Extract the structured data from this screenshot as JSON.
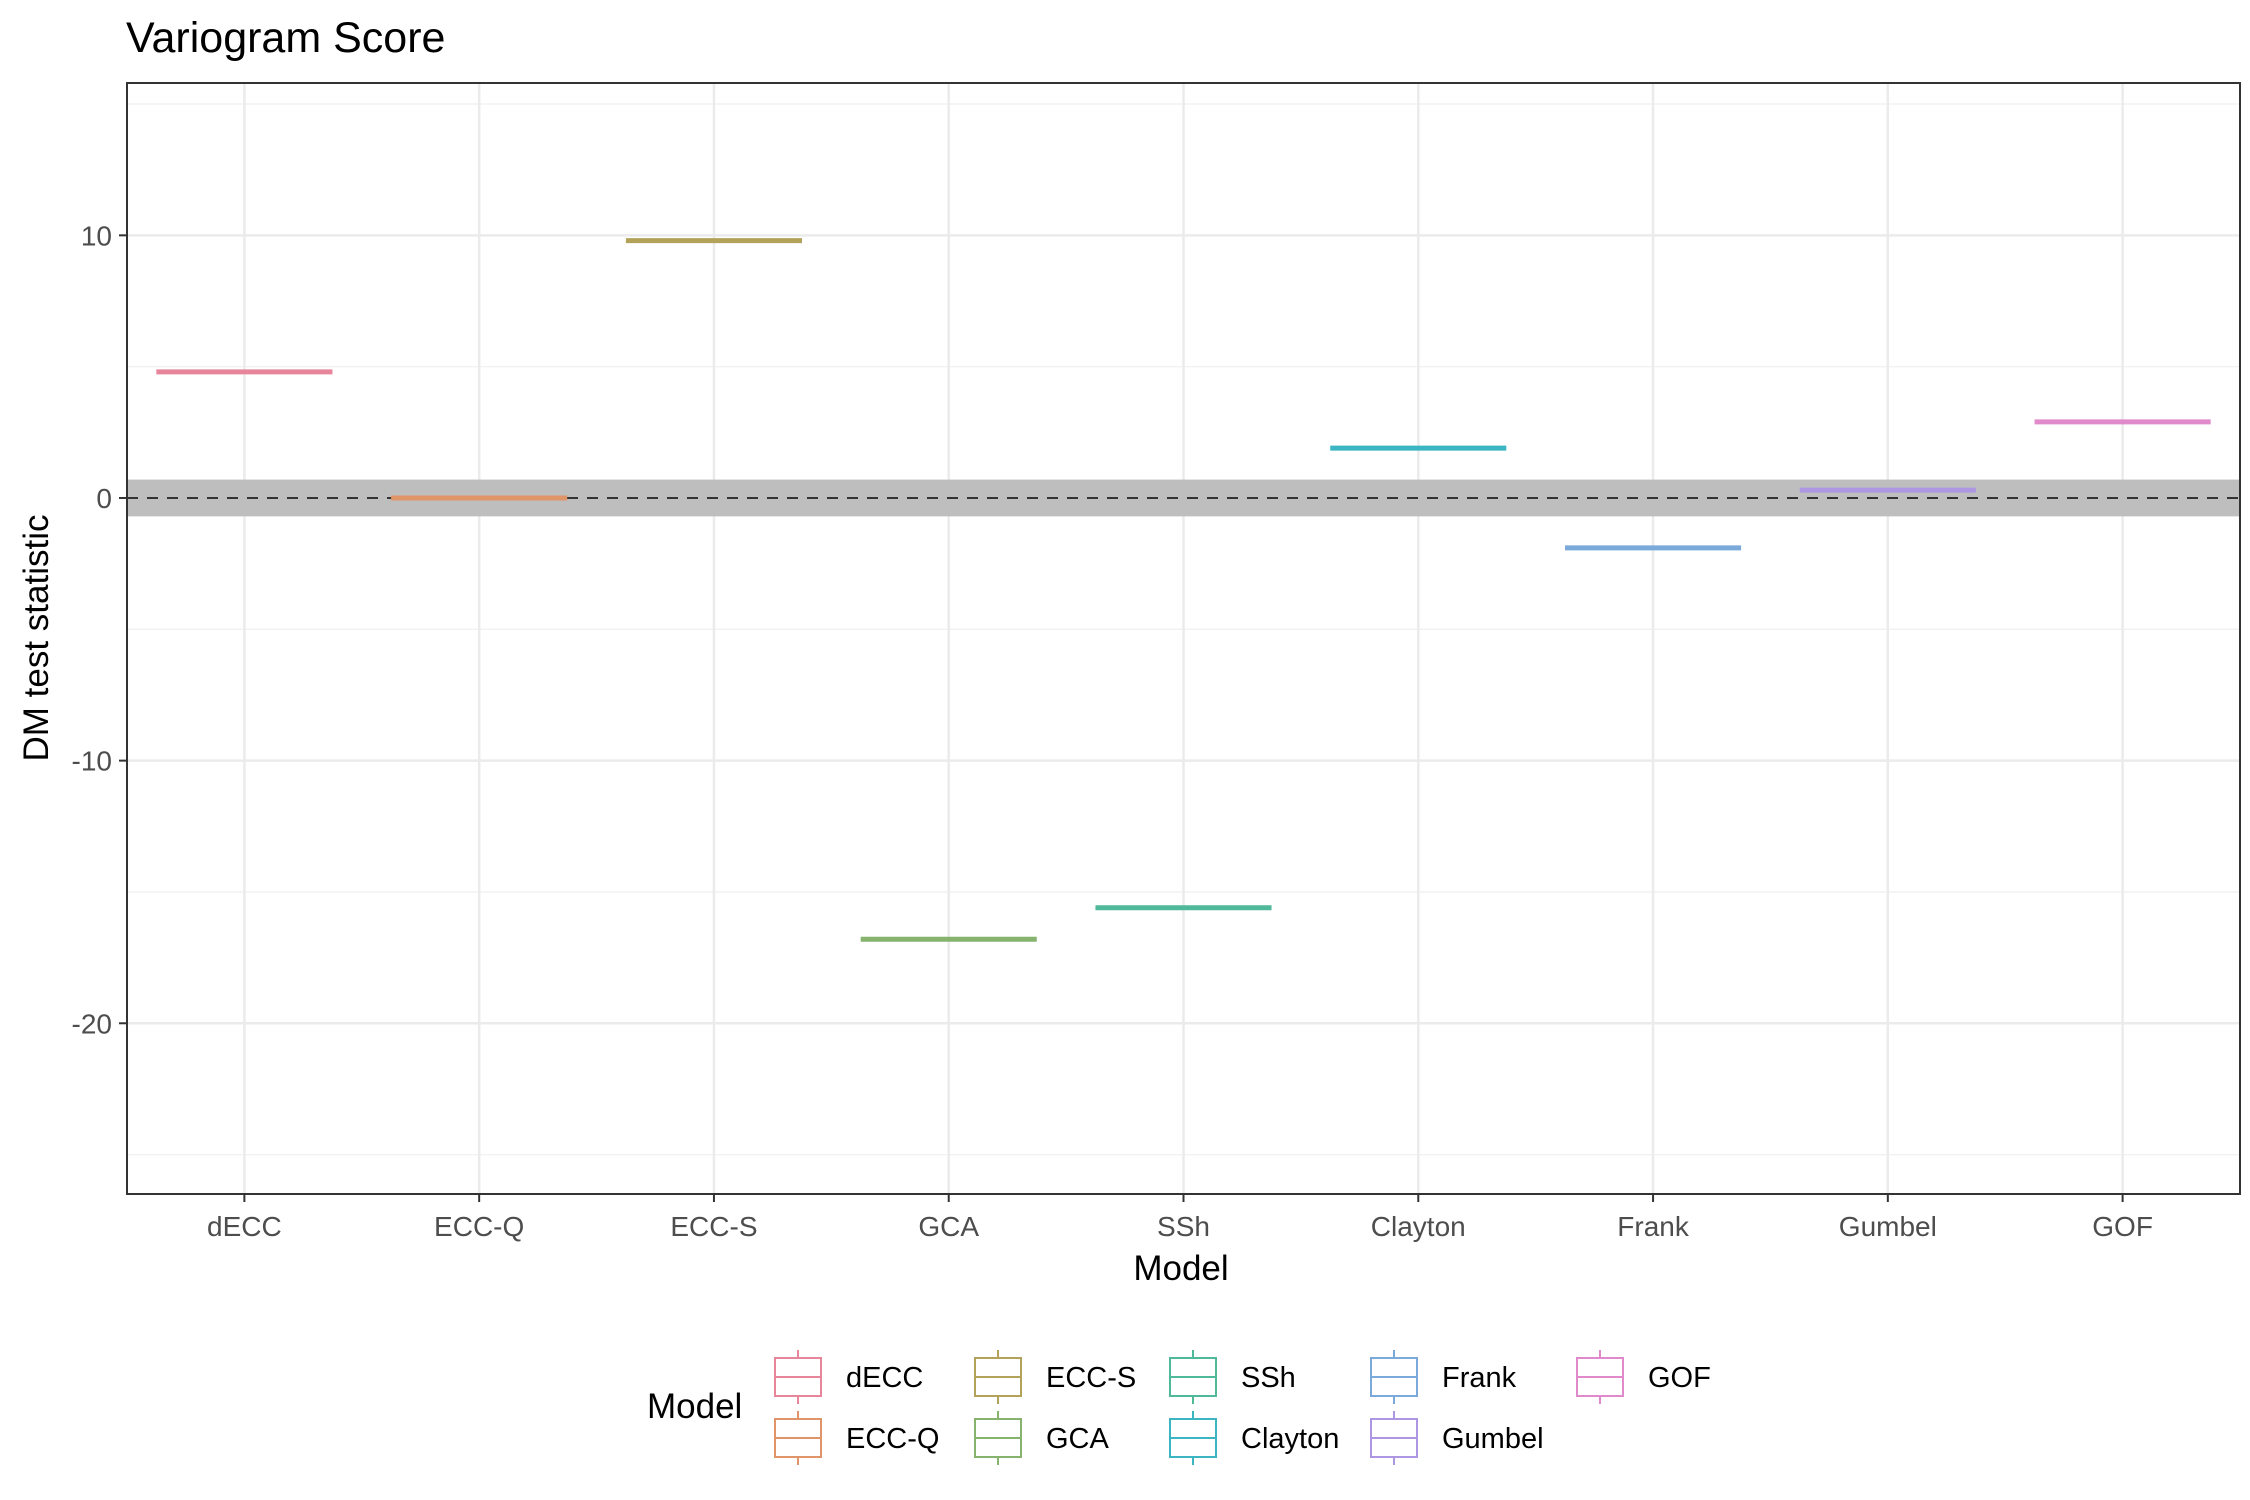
{
  "chart_data": {
    "type": "boxplot",
    "title": "Variogram Score",
    "xlabel": "Model",
    "ylabel": "DM test statistic",
    "categories": [
      "dECC",
      "ECC-Q",
      "ECC-S",
      "GCA",
      "SSh",
      "Clayton",
      "Frank",
      "Gumbel",
      "GOF"
    ],
    "values": [
      4.8,
      0.0,
      9.8,
      -16.8,
      -15.6,
      1.9,
      -1.9,
      0.3,
      2.9
    ],
    "colors": [
      "#E7869A",
      "#E0946A",
      "#B2A25A",
      "#86B46E",
      "#4FB99A",
      "#3BB5C2",
      "#7AA9DA",
      "#AD96E2",
      "#E08ACB"
    ],
    "ylim": [
      -26.5,
      15.8
    ],
    "yticks": [
      10,
      0,
      -10,
      -20
    ],
    "ytick_labels": [
      "10",
      "0",
      "-10",
      "-20"
    ],
    "reference_line": 0,
    "reference_band": [
      -0.7,
      0.7
    ],
    "grid": true,
    "legend": {
      "title": "Model",
      "position": "bottom",
      "items": [
        "dECC",
        "ECC-Q",
        "ECC-S",
        "GCA",
        "SSh",
        "Clayton",
        "Frank",
        "Gumbel",
        "GOF"
      ]
    }
  }
}
